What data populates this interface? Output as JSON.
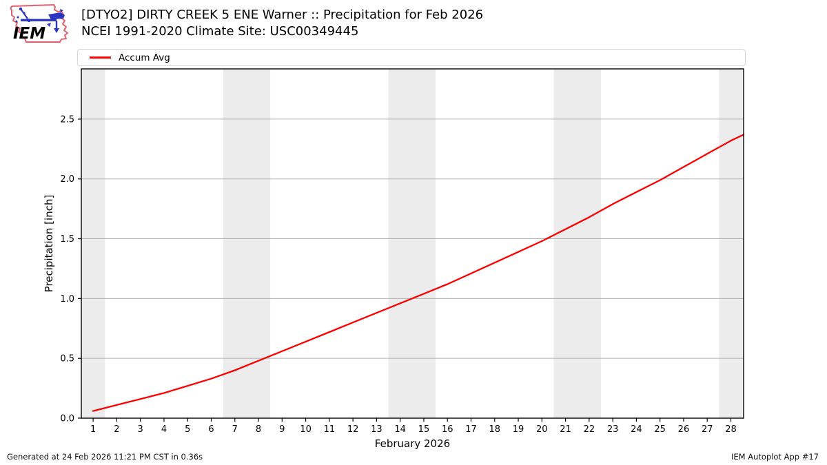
{
  "header": {
    "title_line1": "[DTYO2] DIRTY CREEK 5 ENE Warner :: Precipitation for Feb 2026",
    "title_line2": "NCEI 1991-2020 Climate Site: USC00349445"
  },
  "logo": {
    "text": "IEM"
  },
  "legend": {
    "items": [
      {
        "label": "Accum Avg",
        "color": "#ff0000"
      }
    ]
  },
  "chart_data": {
    "type": "line",
    "title": "[DTYO2] DIRTY CREEK 5 ENE Warner :: Precipitation for Feb 2026",
    "subtitle": "NCEI 1991-2020 Climate Site: USC00349445",
    "xlabel": "February 2026",
    "ylabel": "Precipitation [inch]",
    "xlim": [
      0.5,
      28.54
    ],
    "ylim": [
      0,
      2.92
    ],
    "x_ticks": [
      1,
      2,
      3,
      4,
      5,
      6,
      7,
      8,
      9,
      10,
      11,
      12,
      13,
      14,
      15,
      16,
      17,
      18,
      19,
      20,
      21,
      22,
      23,
      24,
      25,
      26,
      27,
      28
    ],
    "y_ticks": [
      0.0,
      0.5,
      1.0,
      1.5,
      2.0,
      2.5
    ],
    "y_tick_labels": [
      "0.0",
      "0.5",
      "1.0",
      "1.5",
      "2.0",
      "2.5"
    ],
    "grid": "horizontal",
    "legend_position": "top",
    "weekend_bands": [
      [
        0.5,
        1.5
      ],
      [
        6.5,
        8.5
      ],
      [
        13.5,
        15.5
      ],
      [
        20.5,
        22.5
      ],
      [
        27.5,
        28.5
      ]
    ],
    "band_color": "#ececec",
    "grid_color": "#b0b0b0",
    "series": [
      {
        "name": "Accum Avg",
        "color": "#ff0000",
        "x": [
          1,
          2,
          3,
          4,
          5,
          6,
          7,
          8,
          9,
          10,
          11,
          12,
          13,
          14,
          15,
          16,
          17,
          18,
          19,
          20,
          21,
          22,
          23,
          24,
          25,
          26,
          27,
          28,
          28.54
        ],
        "values": [
          0.06,
          0.11,
          0.16,
          0.21,
          0.27,
          0.33,
          0.4,
          0.48,
          0.56,
          0.64,
          0.72,
          0.8,
          0.88,
          0.96,
          1.04,
          1.12,
          1.21,
          1.3,
          1.39,
          1.48,
          1.58,
          1.68,
          1.79,
          1.89,
          1.99,
          2.1,
          2.21,
          2.32,
          2.37
        ]
      }
    ]
  },
  "footer": {
    "generated": "Generated at 24 Feb 2026 11:21 PM CST in 0.36s",
    "app": "IEM Autoplot App #17"
  }
}
